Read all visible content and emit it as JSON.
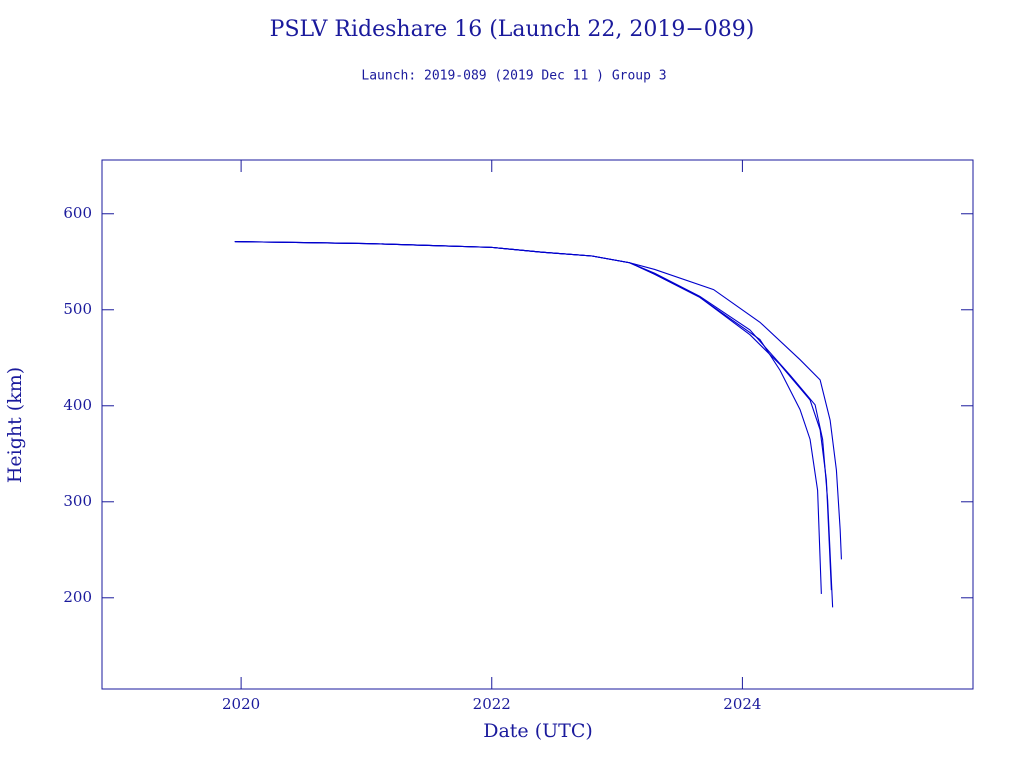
{
  "chart_data": {
    "type": "line",
    "title": "PSLV Rideshare 16 (Launch 22, 2019−089)",
    "subtitle": "Launch: 2019-089  (2019 Dec 11 )  Group 3",
    "x_label": "Date (UTC)",
    "y_label": "Height (km)",
    "xlim": [
      2018.89,
      2025.84
    ],
    "ylim": [
      105,
      656
    ],
    "xticks": [
      2020,
      2022,
      2024
    ],
    "yticks": [
      200,
      300,
      400,
      500,
      600
    ],
    "series": [
      {
        "color": "#0000cc",
        "x": [
          2019.95,
          2020.5,
          2021,
          2021.5,
          2022,
          2022.4,
          2022.8,
          2023.1,
          2023.3,
          2023.77,
          2024.14,
          2024.46,
          2024.62,
          2024.7,
          2024.75,
          2024.78,
          2024.79
        ],
        "values": [
          571,
          570,
          569,
          567,
          565,
          560,
          556,
          549,
          542,
          521,
          487,
          448,
          427,
          385,
          333,
          271,
          240
        ]
      },
      {
        "color": "#0000cc",
        "x": [
          2019.95,
          2020.5,
          2021,
          2021.5,
          2022,
          2022.4,
          2022.8,
          2023.1,
          2023.3,
          2023.66,
          2024.06,
          2024.38,
          2024.58,
          2024.64,
          2024.68,
          2024.72
        ],
        "values": [
          571,
          570,
          569,
          567,
          565,
          560,
          556,
          549,
          538,
          514,
          479,
          432,
          401,
          365,
          302,
          190
        ]
      },
      {
        "color": "#0000cc",
        "x": [
          2019.95,
          2020.5,
          2021,
          2021.5,
          2022,
          2022.4,
          2022.8,
          2023.1,
          2023.3,
          2023.66,
          2024.06,
          2024.3,
          2024.54,
          2024.62,
          2024.67,
          2024.71
        ],
        "values": [
          571,
          570,
          569,
          567,
          565,
          560,
          556,
          549,
          537,
          513,
          474,
          443,
          406,
          375,
          323,
          208
        ]
      },
      {
        "color": "#0000cc",
        "x": [
          2019.95,
          2020.5,
          2021,
          2021.5,
          2022,
          2022.4,
          2022.8,
          2023.1,
          2023.3,
          2023.66,
          2024.14,
          2024.3,
          2024.46,
          2024.54,
          2024.6,
          2024.63
        ],
        "values": [
          571,
          570,
          569,
          567,
          565,
          560,
          556,
          549,
          537,
          513,
          469,
          437,
          396,
          365,
          312,
          204
        ]
      }
    ]
  }
}
